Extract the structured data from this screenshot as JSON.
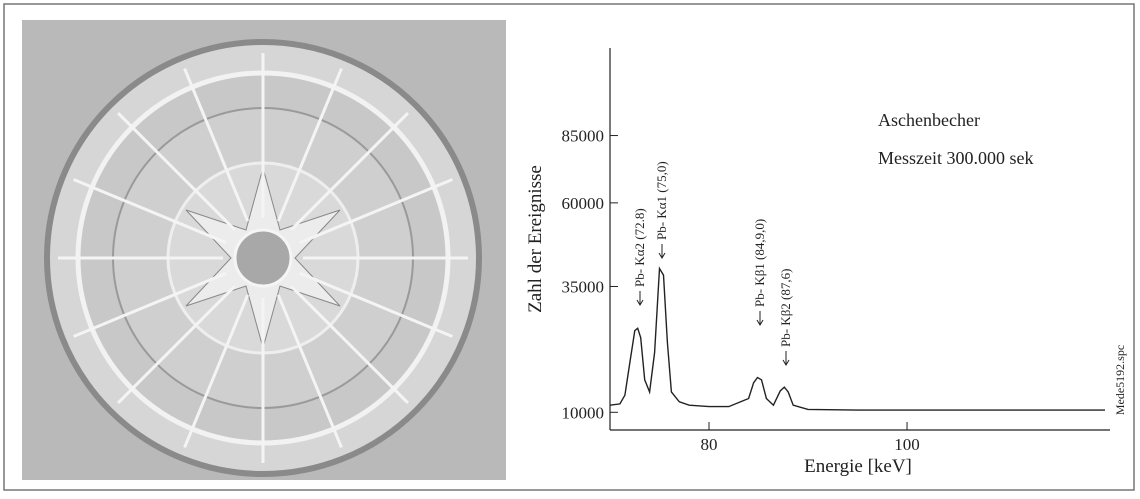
{
  "chart_data": {
    "type": "line",
    "x_label": "Energie [keV]",
    "y_label": "Zahl der Ereignisse",
    "annotations": [
      "Aschenbecher",
      "Messzeit 300.000 sek",
      "Mede5192.spc"
    ],
    "peak_labels": [
      "Pb- Kα2 (72.8)",
      "Pb- Kα1 (75,0)",
      "Pb- Kβ1 (84,9,0)",
      "Pb- Kβ2 (87,6)"
    ],
    "yscale": "sqrt",
    "xlim": [
      70,
      120.5
    ],
    "xticks": [
      80,
      100
    ],
    "ylim": [
      7700,
      124000
    ],
    "yticks": [
      10000,
      35000,
      60000,
      85000
    ],
    "series": [
      {
        "color": "#222222",
        "x": [
          70,
          71,
          71.5,
          72,
          72.5,
          72.8,
          73.1,
          73.5,
          74,
          74.5,
          75,
          75.4,
          75.8,
          76.2,
          77,
          78,
          80,
          82,
          84,
          84.5,
          84.9,
          85.3,
          85.8,
          86.5,
          87.2,
          87.6,
          88,
          88.5,
          90,
          95,
          100,
          105,
          110,
          115,
          120
        ],
        "values": [
          11000,
          11200,
          12500,
          18000,
          24500,
          25000,
          23000,
          15000,
          13000,
          20000,
          39800,
          38000,
          22000,
          13000,
          11500,
          11000,
          10800,
          10800,
          12000,
          14500,
          15400,
          15000,
          12000,
          11000,
          13200,
          13800,
          13000,
          11000,
          10400,
          10300,
          10300,
          10300,
          10300,
          10300,
          10300
        ]
      }
    ]
  }
}
